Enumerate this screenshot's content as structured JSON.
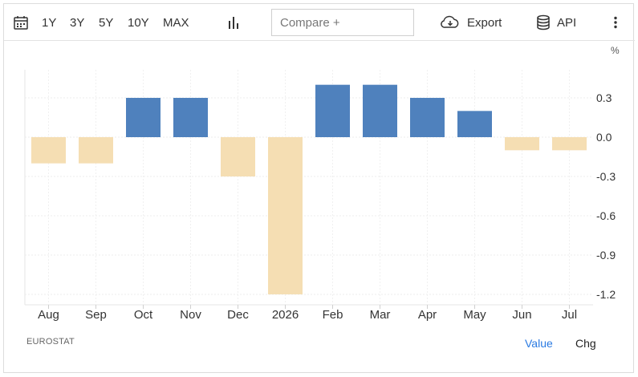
{
  "toolbar": {
    "calendar_icon": "calendar-icon",
    "ranges": [
      "1Y",
      "3Y",
      "5Y",
      "10Y",
      "MAX"
    ],
    "chart_type_icon": "bar-chart-icon",
    "compare_placeholder": "Compare +",
    "export_label": "Export",
    "export_icon": "cloud-download-icon",
    "api_label": "API",
    "api_icon": "database-icon",
    "more_icon": "more-vertical-icon"
  },
  "unit_label": "%",
  "footer": {
    "source": "EUROSTAT",
    "value_label": "Value",
    "chg_label": "Chg"
  },
  "colors": {
    "positive": "#4f81bd",
    "negative": "#f5deb3",
    "active_link": "#2a7ae2"
  },
  "chart_data": {
    "type": "bar",
    "categories": [
      "Aug",
      "Sep",
      "Oct",
      "Nov",
      "Dec",
      "2026",
      "Feb",
      "Mar",
      "Apr",
      "May",
      "Jun",
      "Jul"
    ],
    "values": [
      -0.2,
      -0.2,
      0.3,
      0.3,
      -0.3,
      -1.2,
      0.4,
      0.4,
      0.3,
      0.2,
      -0.1,
      -0.1
    ],
    "yticks": [
      0.3,
      0.0,
      -0.3,
      -0.6,
      -0.9,
      -1.2
    ],
    "ytick_labels": [
      "0.3",
      "0.0",
      "-0.3",
      "-0.6",
      "-0.9",
      "-1.2"
    ],
    "ylim": [
      -1.2,
      0.4
    ],
    "grid": true,
    "title": "",
    "xlabel": "",
    "ylabel": ""
  }
}
